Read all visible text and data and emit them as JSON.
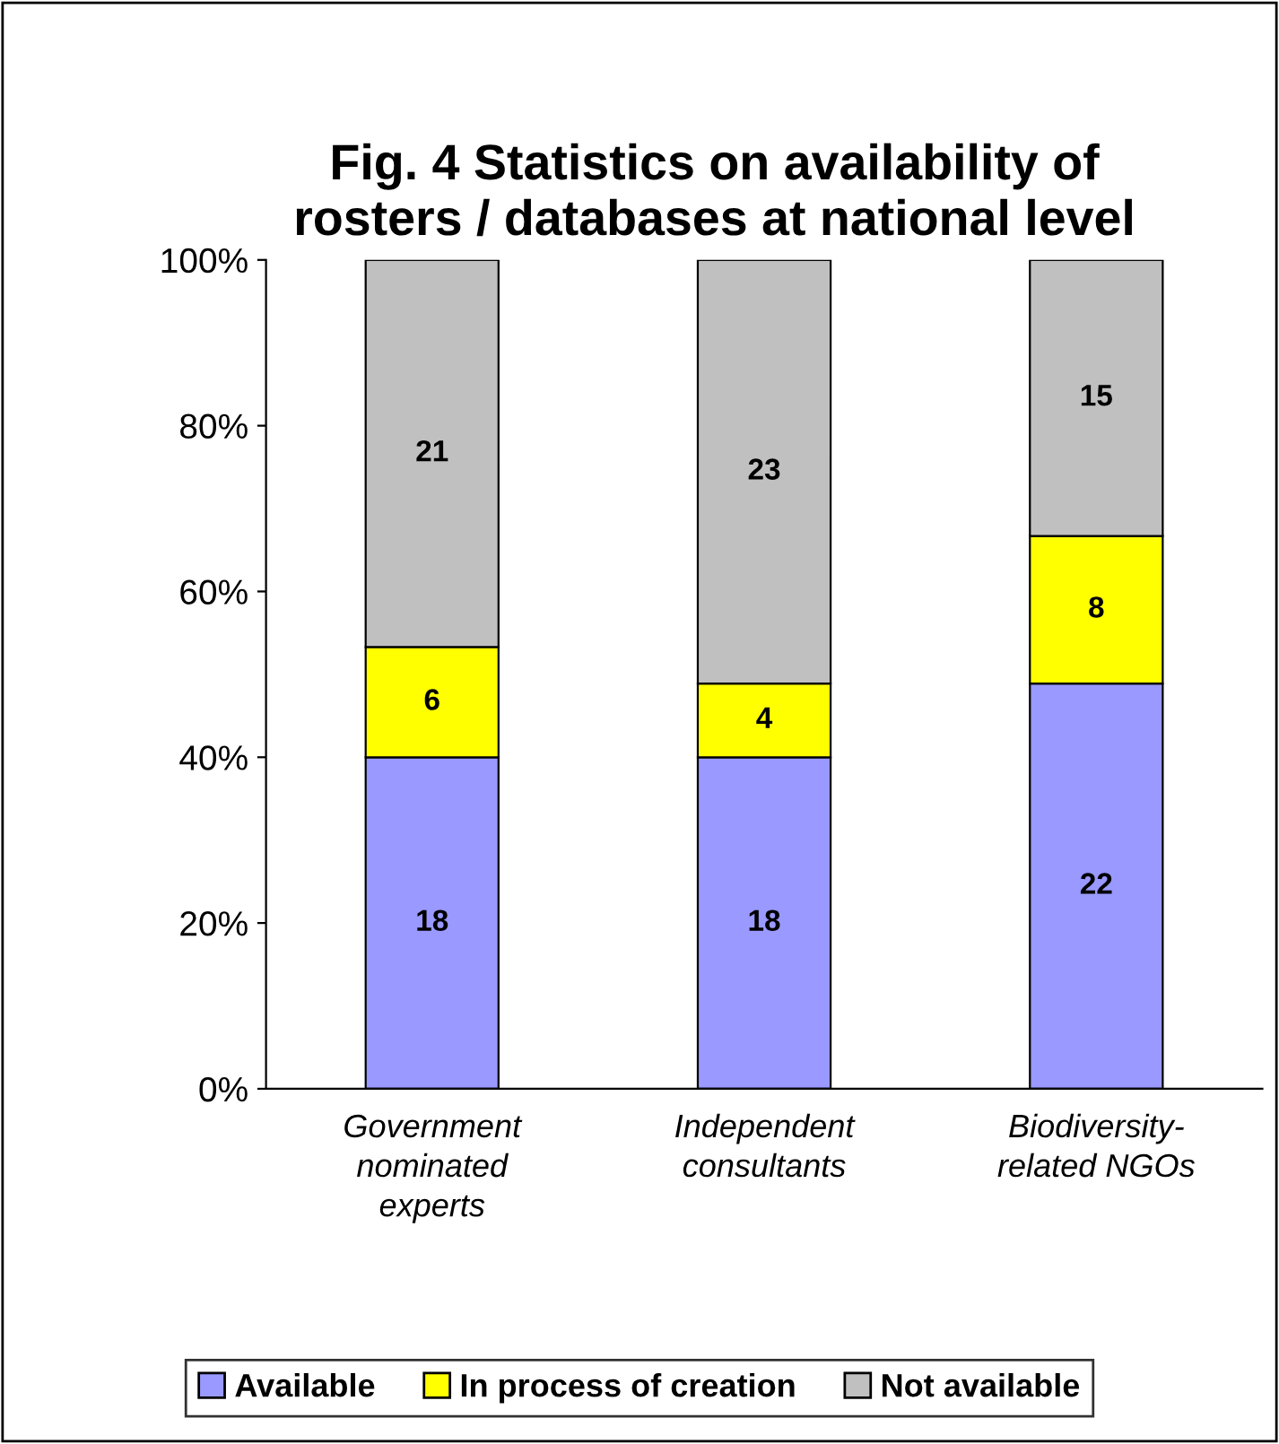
{
  "chart_data": {
    "type": "bar",
    "title": "Fig. 4 Statistics on availability of\nrosters / databases at national level",
    "categories": [
      "Government\nnominated\nexperts",
      "Independent\nconsultants",
      "Biodiversity-\nrelated NGOs"
    ],
    "stacked": true,
    "series": [
      {
        "name": "Available",
        "color": "#9999ff",
        "values": [
          40,
          40,
          48.9
        ]
      },
      {
        "name": "In process of creation",
        "color": "#ffff00",
        "values": [
          13.3,
          8.9,
          17.8
        ]
      },
      {
        "name": "Not available",
        "color": "#c0c0c0",
        "values": [
          46.7,
          51.1,
          33.3
        ]
      }
    ],
    "annotations": [
      "18",
      "6",
      "21",
      "18",
      "4",
      "23",
      "22",
      "8",
      "15"
    ],
    "ylim": [
      0,
      100
    ],
    "yticks": [
      {
        "value": 0,
        "label": "0%"
      },
      {
        "value": 20,
        "label": "20%"
      },
      {
        "value": 40,
        "label": "40%"
      },
      {
        "value": 60,
        "label": "60%"
      },
      {
        "value": 80,
        "label": "80%"
      },
      {
        "value": 100,
        "label": "100%"
      }
    ],
    "grid": false,
    "legend": "bottom"
  }
}
